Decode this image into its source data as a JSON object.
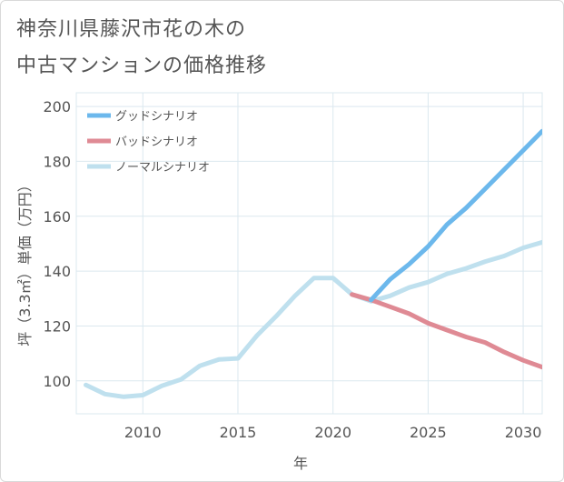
{
  "title_lines": [
    "神奈川県藤沢市花の木の",
    "中古マンションの価格推移"
  ],
  "colors": {
    "good": "#6cb8ec",
    "bad": "#df8a94",
    "normal": "#bfe0ee",
    "grid": "#dbe8ef",
    "text": "#555555"
  },
  "chart_data": {
    "type": "line",
    "title": "神奈川県藤沢市花の木の中古マンションの価格推移",
    "xlabel": "年",
    "ylabel": "坪（3.3㎡）単価（万円）",
    "xlim": [
      2006.5,
      2031
    ],
    "ylim": [
      88,
      205
    ],
    "xticks": [
      2010,
      2015,
      2020,
      2025,
      2030
    ],
    "yticks": [
      100,
      120,
      140,
      160,
      180,
      200
    ],
    "grid": true,
    "legend_position": "top-left",
    "series": [
      {
        "name": "グッドシナリオ",
        "color": "#6cb8ec",
        "x": [
          2022,
          2023,
          2024,
          2025,
          2026,
          2027,
          2028,
          2029,
          2030,
          2031
        ],
        "y": [
          129.5,
          137,
          142.5,
          149,
          157,
          163,
          170,
          177,
          184,
          191
        ]
      },
      {
        "name": "バッドシナリオ",
        "color": "#df8a94",
        "x": [
          2021,
          2022,
          2023,
          2024,
          2025,
          2026,
          2027,
          2028,
          2029,
          2030,
          2031
        ],
        "y": [
          131.5,
          129.5,
          127,
          124.5,
          121,
          118.5,
          116,
          114,
          110.5,
          107.5,
          105
        ]
      },
      {
        "name": "ノーマルシナリオ",
        "color": "#bfe0ee",
        "x": [
          2007,
          2008,
          2009,
          2010,
          2011,
          2012,
          2013,
          2014,
          2015,
          2016,
          2017,
          2018,
          2019,
          2020,
          2021,
          2022,
          2023,
          2024,
          2025,
          2026,
          2027,
          2028,
          2029,
          2030,
          2031
        ],
        "y": [
          98.5,
          95.2,
          94.2,
          94.8,
          98.2,
          100.5,
          105.5,
          107.8,
          108.2,
          116.5,
          123.5,
          131,
          137.5,
          137.5,
          131.5,
          129,
          131,
          134,
          136,
          139,
          141,
          143.5,
          145.5,
          148.5,
          150.5
        ]
      }
    ]
  }
}
